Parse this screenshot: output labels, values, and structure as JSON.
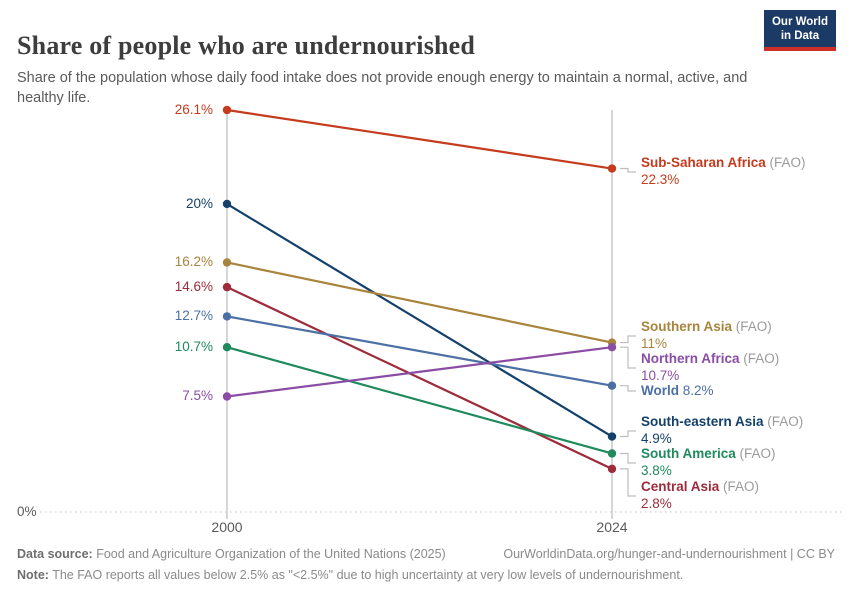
{
  "header": {
    "title": "Share of people who are undernourished",
    "subtitle": "Share of the population whose daily food intake does not provide enough energy to maintain a normal, active, and healthy life.",
    "logo_line1": "Our World",
    "logo_line2": "in Data",
    "logo_bg": "#1b3a66",
    "logo_accent": "#cc2f28"
  },
  "chart_data": {
    "type": "line",
    "variant": "slope-chart",
    "title": "Share of people who are undernourished",
    "x": [
      2000,
      2024
    ],
    "xlabels": [
      "2000",
      "2024"
    ],
    "ylim": [
      0,
      26.1
    ],
    "zero_label": "0%",
    "grid": "zero-baseline-dotted-only",
    "legend_position": "right-of-end-points",
    "series": [
      {
        "name": "Sub-Saharan Africa",
        "qualifier": " (FAO)",
        "values": [
          26.1,
          22.3
        ],
        "start_label": "26.1%",
        "end_label": "22.3%",
        "color": "#c43b1d",
        "inline": false
      },
      {
        "name": "South-eastern Asia",
        "qualifier": " (FAO)",
        "values": [
          20,
          4.9
        ],
        "start_label": "20%",
        "end_label": "4.9%",
        "color": "#14406b",
        "inline": false
      },
      {
        "name": "Southern Asia",
        "qualifier": " (FAO)",
        "values": [
          16.2,
          11
        ],
        "start_label": "16.2%",
        "end_label": "11%",
        "color": "#a8843c",
        "inline": false
      },
      {
        "name": "Central Asia",
        "qualifier": " (FAO)",
        "values": [
          14.6,
          2.8
        ],
        "start_label": "14.6%",
        "end_label": "2.8%",
        "color": "#9e2b3a",
        "inline": false
      },
      {
        "name": "World",
        "qualifier": "",
        "values": [
          12.7,
          8.2
        ],
        "start_label": "12.7%",
        "end_label": "8.2%",
        "color": "#4c70a4",
        "inline": true
      },
      {
        "name": "South America",
        "qualifier": " (FAO)",
        "values": [
          10.7,
          3.8
        ],
        "start_label": "10.7%",
        "end_label": "3.8%",
        "color": "#1f8a5c",
        "inline": false
      },
      {
        "name": "Northern Africa",
        "qualifier": " (FAO)",
        "values": [
          7.5,
          10.7
        ],
        "start_label": "7.5%",
        "end_label": "10.7%",
        "color": "#8a4da5",
        "inline": false
      }
    ]
  },
  "footer": {
    "datasource_label": "Data source:",
    "datasource_text": " Food and Agriculture Organization of the United Nations (2025)",
    "attribution": "OurWorldinData.org/hunger-and-undernourishment | CC BY",
    "note_label": "Note:",
    "note_text": " The FAO reports all values below 2.5% as \"<2.5%\" due to high uncertainty at very low levels of undernourishment."
  }
}
